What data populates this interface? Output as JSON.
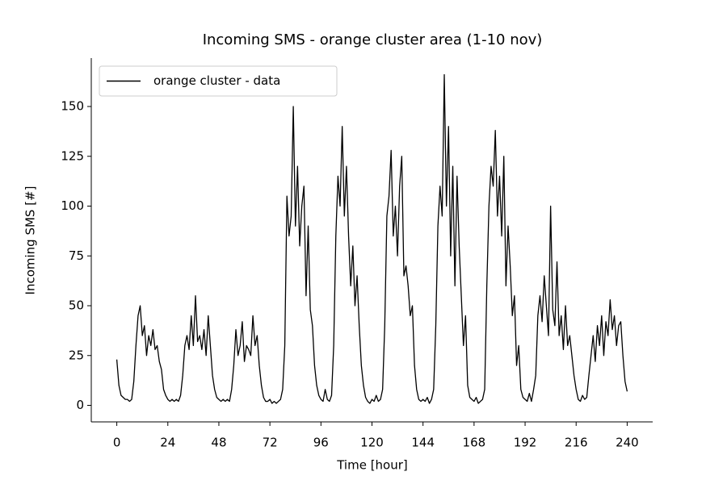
{
  "chart_data": {
    "type": "line",
    "title": "Incoming SMS - orange cluster area (1-10 nov)",
    "x_label": "Time [hour]",
    "y_label": "Incoming SMS [#]",
    "legend_position": "upper left",
    "grid": false,
    "xlim": [
      -12,
      252
    ],
    "ylim": [
      -8.3,
      174.3
    ],
    "xticks": [
      0,
      24,
      48,
      72,
      96,
      120,
      144,
      168,
      192,
      216,
      240
    ],
    "yticks": [
      0,
      25,
      50,
      75,
      100,
      125,
      150
    ],
    "x": [
      0,
      1,
      2,
      3,
      4,
      5,
      6,
      7,
      8,
      9,
      10,
      11,
      12,
      13,
      14,
      15,
      16,
      17,
      18,
      19,
      20,
      21,
      22,
      23,
      24,
      25,
      26,
      27,
      28,
      29,
      30,
      31,
      32,
      33,
      34,
      35,
      36,
      37,
      38,
      39,
      40,
      41,
      42,
      43,
      44,
      45,
      46,
      47,
      48,
      49,
      50,
      51,
      52,
      53,
      54,
      55,
      56,
      57,
      58,
      59,
      60,
      61,
      62,
      63,
      64,
      65,
      66,
      67,
      68,
      69,
      70,
      71,
      72,
      73,
      74,
      75,
      76,
      77,
      78,
      79,
      80,
      81,
      82,
      83,
      84,
      85,
      86,
      87,
      88,
      89,
      90,
      91,
      92,
      93,
      94,
      95,
      96,
      97,
      98,
      99,
      100,
      101,
      102,
      103,
      104,
      105,
      106,
      107,
      108,
      109,
      110,
      111,
      112,
      113,
      114,
      115,
      116,
      117,
      118,
      119,
      120,
      121,
      122,
      123,
      124,
      125,
      126,
      127,
      128,
      129,
      130,
      131,
      132,
      133,
      134,
      135,
      136,
      137,
      138,
      139,
      140,
      141,
      142,
      143,
      144,
      145,
      146,
      147,
      148,
      149,
      150,
      151,
      152,
      153,
      154,
      155,
      156,
      157,
      158,
      159,
      160,
      161,
      162,
      163,
      164,
      165,
      166,
      167,
      168,
      169,
      170,
      171,
      172,
      173,
      174,
      175,
      176,
      177,
      178,
      179,
      180,
      181,
      182,
      183,
      184,
      185,
      186,
      187,
      188,
      189,
      190,
      191,
      192,
      193,
      194,
      195,
      196,
      197,
      198,
      199,
      200,
      201,
      202,
      203,
      204,
      205,
      206,
      207,
      208,
      209,
      210,
      211,
      212,
      213,
      214,
      215,
      216,
      217,
      218,
      219,
      220,
      221,
      222,
      223,
      224,
      225,
      226,
      227,
      228,
      229,
      230,
      231,
      232,
      233,
      234,
      235,
      236,
      237,
      238,
      239,
      240
    ],
    "series": [
      {
        "name": "orange cluster - data",
        "color": "#000000",
        "values": [
          23,
          10,
          5,
          4,
          3,
          3,
          2,
          3,
          12,
          30,
          45,
          50,
          35,
          40,
          25,
          35,
          30,
          38,
          28,
          30,
          22,
          18,
          8,
          5,
          3,
          2,
          3,
          2,
          3,
          2,
          5,
          15,
          30,
          35,
          28,
          45,
          30,
          55,
          32,
          35,
          28,
          38,
          25,
          45,
          30,
          15,
          8,
          4,
          3,
          2,
          3,
          2,
          3,
          2,
          8,
          20,
          38,
          25,
          30,
          42,
          22,
          30,
          28,
          25,
          45,
          30,
          35,
          20,
          10,
          4,
          2,
          2,
          3,
          1,
          2,
          1,
          2,
          3,
          8,
          30,
          105,
          85,
          95,
          150,
          90,
          120,
          80,
          100,
          110,
          55,
          90,
          48,
          40,
          20,
          10,
          5,
          3,
          2,
          8,
          3,
          2,
          5,
          30,
          85,
          115,
          100,
          140,
          95,
          120,
          85,
          60,
          80,
          50,
          65,
          40,
          20,
          10,
          4,
          2,
          1,
          3,
          2,
          5,
          2,
          3,
          8,
          40,
          95,
          105,
          128,
          85,
          100,
          75,
          110,
          125,
          65,
          70,
          60,
          45,
          50,
          20,
          8,
          3,
          2,
          3,
          2,
          4,
          1,
          3,
          8,
          40,
          90,
          110,
          95,
          166,
          100,
          140,
          75,
          120,
          60,
          115,
          80,
          55,
          30,
          45,
          10,
          4,
          3,
          2,
          4,
          1,
          2,
          3,
          8,
          60,
          100,
          120,
          110,
          138,
          95,
          115,
          85,
          125,
          60,
          90,
          70,
          45,
          55,
          20,
          30,
          8,
          4,
          3,
          2,
          6,
          2,
          8,
          15,
          45,
          55,
          42,
          65,
          50,
          35,
          100,
          48,
          40,
          72,
          35,
          45,
          28,
          50,
          30,
          35,
          25,
          15,
          8,
          3,
          2,
          5,
          3,
          4,
          15,
          25,
          35,
          22,
          40,
          30,
          45,
          25,
          42,
          35,
          53,
          38,
          45,
          30,
          40,
          42,
          25,
          12,
          7
        ]
      }
    ]
  }
}
